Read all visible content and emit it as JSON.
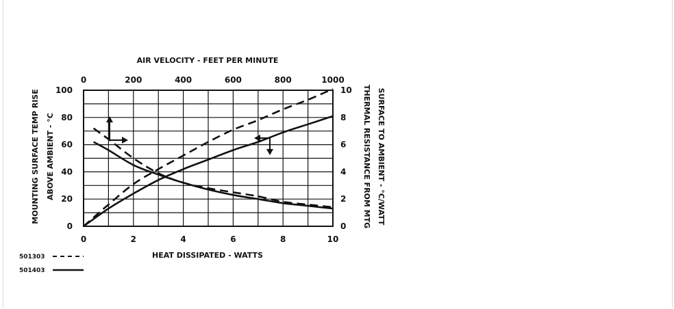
{
  "chart_data": {
    "type": "line",
    "bottom_axis": {
      "label": "HEAT DISSIPATED - WATTS",
      "range": [
        0,
        10
      ],
      "ticks": [
        "0",
        "2",
        "4",
        "6",
        "8",
        "10"
      ]
    },
    "top_axis": {
      "label": "AIR VELOCITY - FEET PER MINUTE",
      "range": [
        0,
        1000
      ],
      "ticks": [
        "0",
        "200",
        "400",
        "600",
        "800",
        "1000"
      ]
    },
    "left_axis": {
      "label_lines": [
        "MOUNTING SURFACE TEMP RISE",
        "ABOVE AMBIENT - °C"
      ],
      "range": [
        0,
        100
      ],
      "ticks": [
        "0",
        "20",
        "40",
        "60",
        "80",
        "100"
      ]
    },
    "right_axis": {
      "label_lines": [
        "THERMAL RESISTANCE FROM MTG",
        "SURFACE TO AMBIENT - °C/WATT"
      ],
      "range": [
        0,
        10
      ],
      "ticks": [
        "0",
        "2",
        "4",
        "6",
        "8",
        "10"
      ]
    },
    "grid": true,
    "legend": [
      {
        "name": "501303",
        "style": "dashed"
      },
      {
        "name": "501403",
        "style": "solid"
      }
    ],
    "series": [
      {
        "name": "501303",
        "style": "dashed",
        "axes": "bottom-left",
        "x": [
          0,
          1,
          2,
          3,
          4,
          5,
          6,
          7,
          8,
          9,
          10
        ],
        "y": [
          0,
          16,
          31,
          42,
          52,
          62,
          71,
          78,
          86,
          93,
          101
        ]
      },
      {
        "name": "501403",
        "style": "solid",
        "axes": "bottom-left",
        "x": [
          0,
          1,
          2,
          3,
          4,
          5,
          6,
          7,
          8,
          9,
          10
        ],
        "y": [
          0,
          13,
          24,
          34,
          42,
          49,
          56,
          62,
          69,
          75,
          81
        ]
      },
      {
        "name": "501303",
        "style": "dashed",
        "axes": "top-right",
        "x": [
          40,
          100,
          200,
          300,
          400,
          500,
          600,
          700,
          800,
          900,
          1000
        ],
        "y": [
          7.2,
          6.4,
          5.0,
          3.9,
          3.2,
          2.8,
          2.5,
          2.2,
          1.8,
          1.6,
          1.4
        ]
      },
      {
        "name": "501403",
        "style": "solid",
        "axes": "top-right",
        "x": [
          40,
          100,
          200,
          300,
          400,
          500,
          600,
          700,
          800,
          900,
          1000
        ],
        "y": [
          6.2,
          5.6,
          4.5,
          3.8,
          3.2,
          2.7,
          2.3,
          2.0,
          1.7,
          1.5,
          1.3
        ]
      }
    ]
  }
}
